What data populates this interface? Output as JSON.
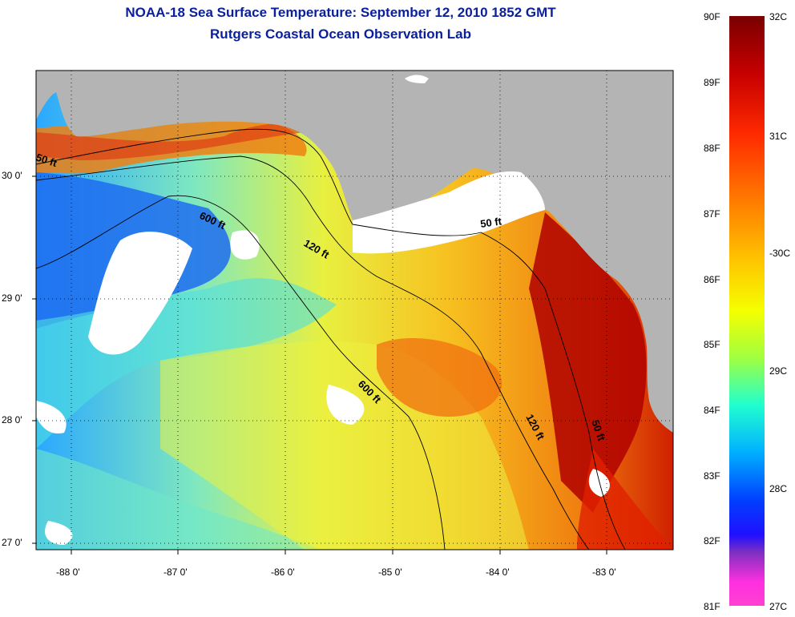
{
  "title_line1": "NOAA-18 Sea Surface Temperature:  September 12, 2010 1852 GMT",
  "title_line2": "Rutgers Coastal Ocean Observation Lab",
  "x_ticks": [
    "-88 0'",
    "-87 0'",
    "-86 0'",
    "-85 0'",
    "-84 0'",
    "-83 0'"
  ],
  "y_ticks": [
    "30 0'",
    "29 0'",
    "28 0'",
    "27 0'"
  ],
  "contours": {
    "c50_left": "50 ft",
    "c50_right": "50 ft",
    "c50_south": "50 ft",
    "c120_north": "120 ft",
    "c120_south": "120 ft",
    "c600_north": "600 ft",
    "c600_south": "600 ft"
  },
  "colorbar": {
    "f_labels": [
      "90F",
      "89F",
      "88F",
      "87F",
      "86F",
      "85F",
      "84F",
      "83F",
      "82F",
      "81F"
    ],
    "c_labels": [
      "32C",
      "31C",
      "-30C",
      "29C",
      "28C",
      "27C"
    ]
  },
  "colors": {
    "land": "#b4b4b4",
    "cloud": "#ffffff",
    "title": "#0a1f9c"
  }
}
